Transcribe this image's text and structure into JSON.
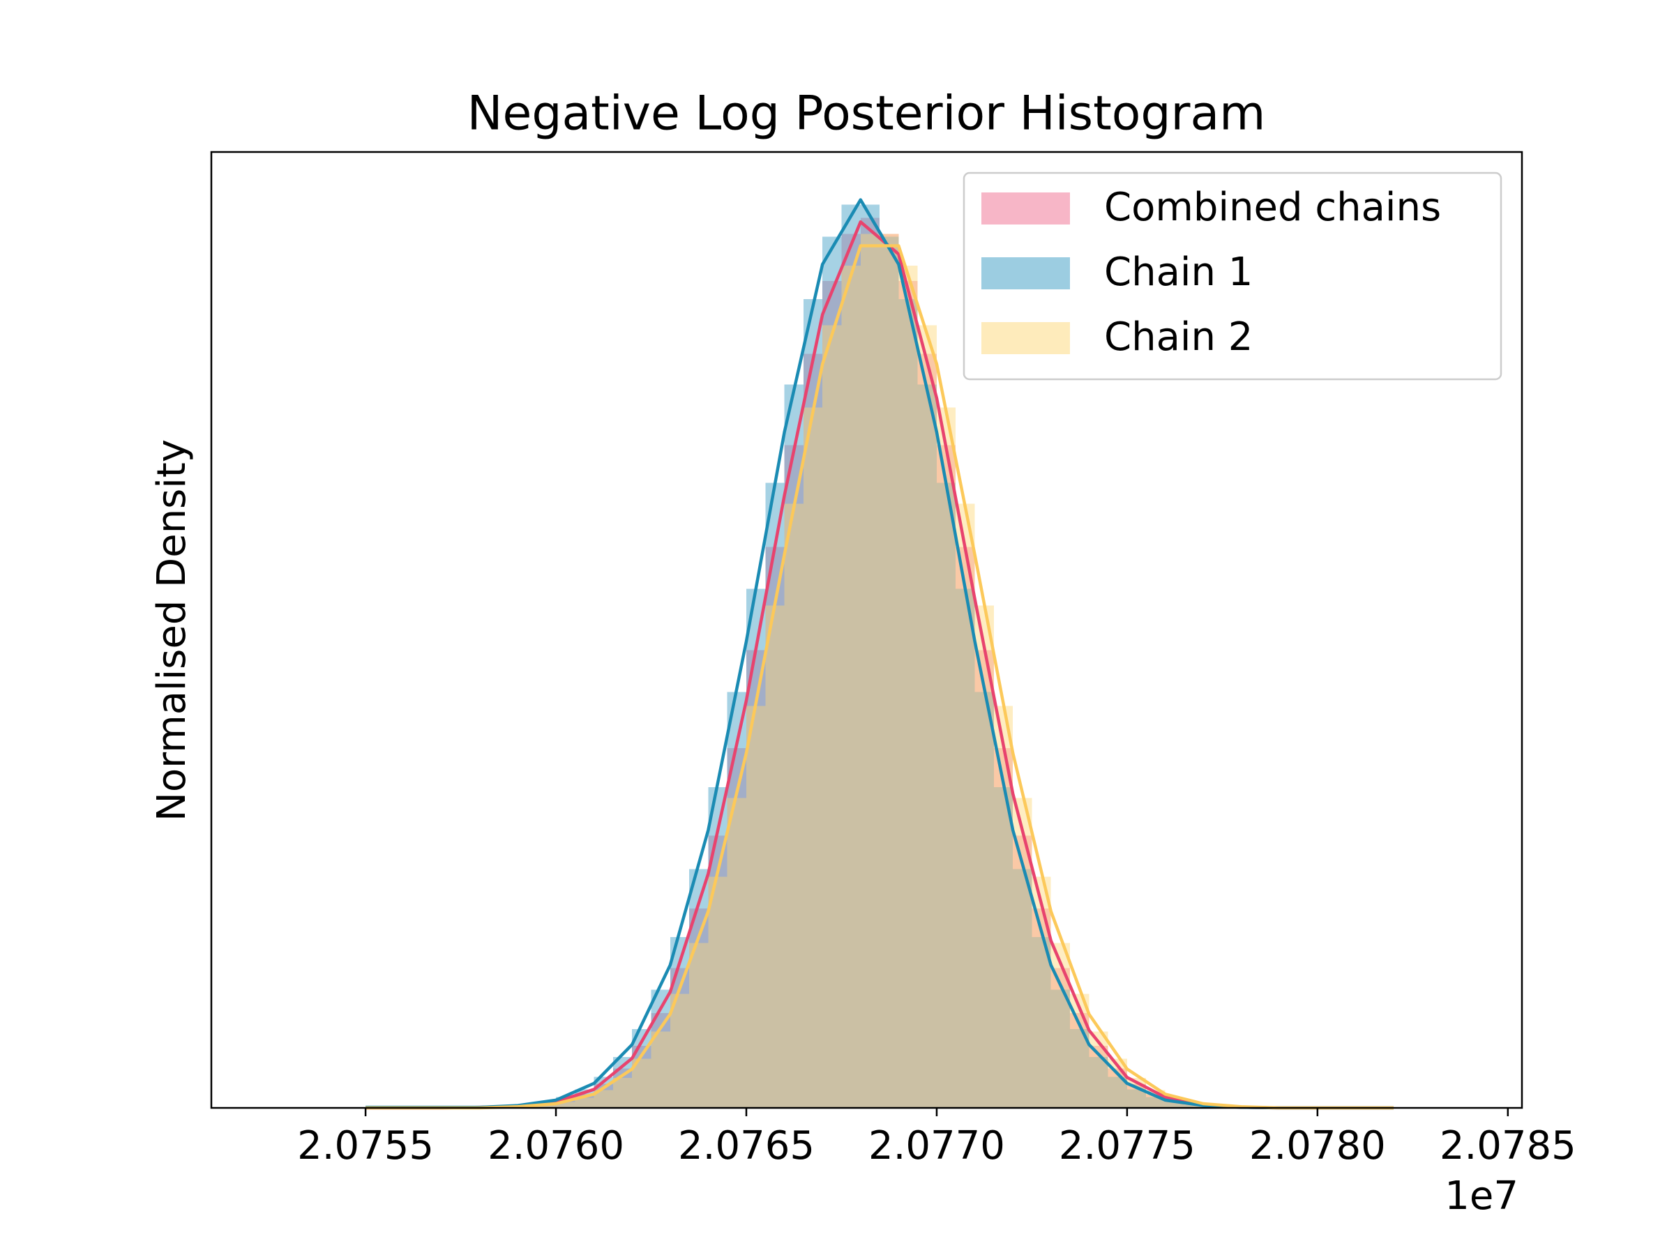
{
  "chart_data": {
    "type": "histogram",
    "title": "Negative Log Posterior Histogram",
    "ylabel": "Normalised Density",
    "x_offset_label": "1e7",
    "xlim": [
      2.075095,
      2.078537
    ],
    "xticks": [
      2.0755,
      {
        "value": 2.076,
        "label": "2.0760"
      },
      2.0765,
      {
        "value": 2.077,
        "label": "2.0770"
      },
      2.0775,
      {
        "value": 2.078,
        "label": "2.0780"
      },
      2.0785
    ],
    "ylim": [
      0,
      1600
    ],
    "legend": "upper right",
    "bins": [
      2.0758,
      2.07585,
      2.0759,
      2.07595,
      2.076,
      2.07605,
      2.0761,
      2.07615,
      2.0762,
      2.07625,
      2.0763,
      2.07635,
      2.0764,
      2.07645,
      2.0765,
      2.07655,
      2.0766,
      2.07665,
      2.0767,
      2.07675,
      2.0768,
      2.07685,
      2.0769,
      2.07695,
      2.077,
      2.07705,
      2.0771,
      2.07715,
      2.0772,
      2.07725,
      2.0773,
      2.07735,
      2.0774,
      2.07745,
      2.0775,
      2.07755,
      2.0776,
      2.07765,
      2.0777,
      2.07775,
      2.0778,
      2.07785,
      2.0779,
      2.07795,
      2.078
    ],
    "series": [
      {
        "name": "Combined chains",
        "color": "#f06d8f",
        "values": [
          1,
          2,
          4,
          7,
          13,
          23,
          40,
          66,
          104,
          159,
          234,
          334,
          456,
          602,
          766,
          939,
          1109,
          1262,
          1384,
          1463,
          1490,
          1463,
          1384,
          1262,
          1109,
          939,
          766,
          602,
          456,
          334,
          234,
          159,
          104,
          66,
          40,
          23,
          13,
          7,
          4,
          2,
          1,
          0,
          0,
          0
        ]
      },
      {
        "name": "Chain 1",
        "color": "#3a9cc4",
        "values": [
          1,
          3,
          5,
          10,
          18,
          31,
          52,
          85,
          132,
          198,
          286,
          400,
          537,
          696,
          869,
          1046,
          1211,
          1354,
          1458,
          1512,
          1512,
          1458,
          1354,
          1211,
          1046,
          869,
          696,
          537,
          400,
          286,
          198,
          132,
          85,
          52,
          31,
          18,
          10,
          5,
          3,
          1,
          1,
          0,
          0,
          0
        ]
      },
      {
        "name": "Chain 2",
        "color": "#fdd777",
        "values": [
          1,
          1,
          3,
          5,
          10,
          17,
          30,
          50,
          82,
          128,
          191,
          276,
          387,
          519,
          673,
          841,
          1011,
          1172,
          1310,
          1410,
          1463,
          1463,
          1410,
          1310,
          1172,
          1011,
          841,
          673,
          519,
          387,
          276,
          191,
          128,
          82,
          50,
          30,
          17,
          10,
          5,
          3,
          1,
          1,
          0,
          0
        ]
      }
    ],
    "kde": {
      "x": [
        2.0755,
        2.0756,
        2.0757,
        2.0758,
        2.0759,
        2.076,
        2.0761,
        2.0762,
        2.0763,
        2.0764,
        2.0765,
        2.0766,
        2.0767,
        2.0768,
        2.0769,
        2.077,
        2.0771,
        2.0772,
        2.0773,
        2.0774,
        2.0775,
        2.0776,
        2.0777,
        2.0778,
        2.0779,
        2.078,
        2.0781,
        2.0782
      ],
      "series": [
        {
          "color": "#e8436e",
          "values": [
            0,
            0,
            0,
            1,
            3,
            10,
            31,
            83,
            194,
            392,
            682,
            1025,
            1328,
            1483,
            1429,
            1188,
            852,
            526,
            280,
            130,
            51,
            18,
            5,
            1,
            0,
            0,
            0,
            0
          ]
        },
        {
          "color": "#1a8bb3",
          "values": [
            1,
            1,
            1,
            1,
            4,
            13,
            41,
            106,
            239,
            465,
            781,
            1131,
            1412,
            1520,
            1412,
            1131,
            781,
            465,
            239,
            106,
            41,
            13,
            4,
            1,
            0,
            0,
            0,
            0
          ]
        },
        {
          "color": "#fcc95a",
          "values": [
            0,
            0,
            0,
            0,
            2,
            7,
            23,
            65,
            157,
            329,
            594,
            926,
            1245,
            1443,
            1443,
            1245,
            926,
            594,
            329,
            157,
            65,
            23,
            7,
            2,
            0,
            0,
            0,
            0
          ]
        }
      ]
    }
  }
}
